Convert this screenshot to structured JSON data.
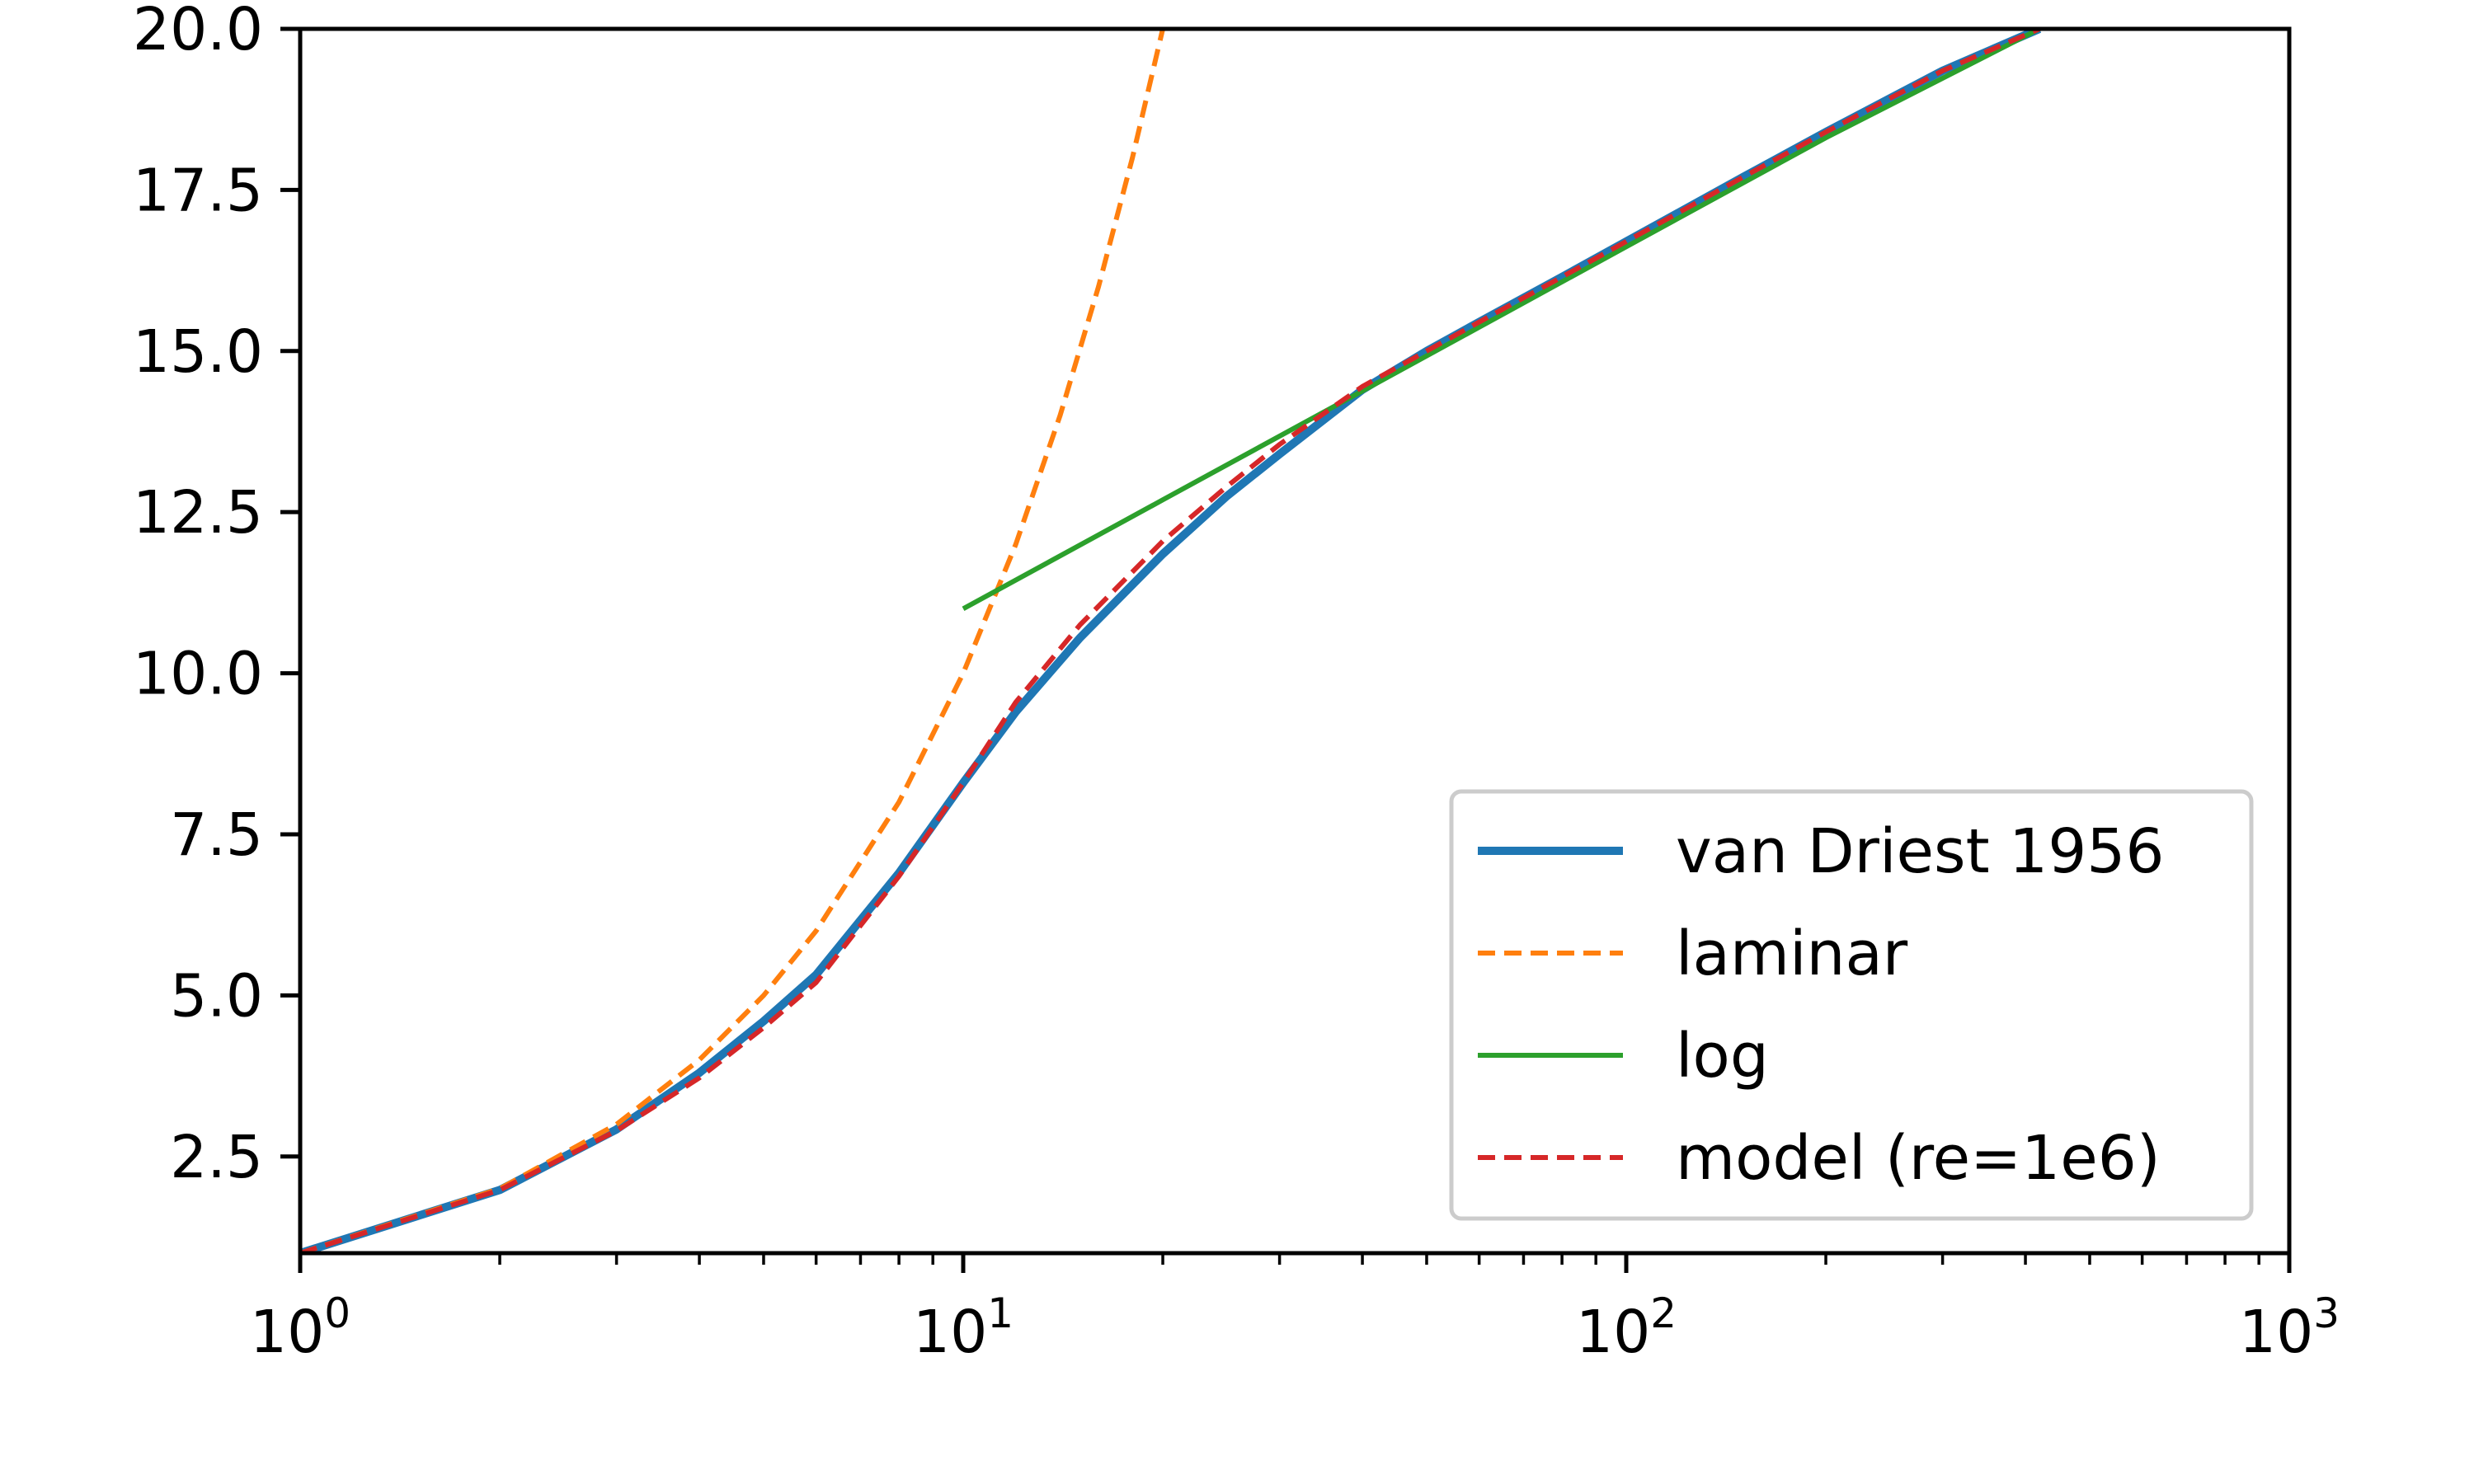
{
  "chart_data": {
    "type": "line",
    "title": "",
    "xlabel": "",
    "ylabel": "",
    "xscale": "log",
    "xlim": [
      1,
      1000
    ],
    "ylim": [
      1.0,
      20.0
    ],
    "grid": false,
    "legend_position": "lower right",
    "x_ticks": [
      {
        "value": 1,
        "base": "10",
        "exp": "0"
      },
      {
        "value": 10,
        "base": "10",
        "exp": "1"
      },
      {
        "value": 100,
        "base": "10",
        "exp": "2"
      },
      {
        "value": 1000,
        "base": "10",
        "exp": "3"
      }
    ],
    "y_ticks": [
      {
        "value": 2.5,
        "label": "2.5"
      },
      {
        "value": 5.0,
        "label": "5.0"
      },
      {
        "value": 7.5,
        "label": "7.5"
      },
      {
        "value": 10.0,
        "label": "10.0"
      },
      {
        "value": 12.5,
        "label": "12.5"
      },
      {
        "value": 15.0,
        "label": "15.0"
      },
      {
        "value": 17.5,
        "label": "17.5"
      },
      {
        "value": 20.0,
        "label": "20.0"
      }
    ],
    "series": [
      {
        "name": "van Driest 1956",
        "color": "#1f77b4",
        "style": "solid",
        "x": [
          1,
          2,
          3,
          4,
          5,
          6,
          8,
          10,
          12,
          15,
          20,
          25,
          30,
          40,
          50,
          60,
          80,
          100,
          150,
          200,
          300,
          420
        ],
        "y": [
          1.0,
          1.98,
          2.92,
          3.8,
          4.6,
          5.32,
          6.9,
          8.3,
          9.4,
          10.55,
          11.85,
          12.75,
          13.4,
          14.4,
          15.0,
          15.45,
          16.15,
          16.7,
          17.7,
          18.4,
          19.35,
          20.0
        ]
      },
      {
        "name": "laminar",
        "color": "#ff7f0e",
        "style": "dashed",
        "x": [
          1,
          2,
          3,
          4,
          5,
          6,
          8,
          10,
          12,
          14,
          16,
          18,
          20
        ],
        "y": [
          1,
          2,
          3,
          4,
          5,
          6,
          8,
          10,
          12,
          14,
          16,
          18,
          20
        ]
      },
      {
        "name": "log",
        "color": "#2ca02c",
        "style": "solid",
        "x": [
          10,
          20,
          40,
          60,
          100,
          200,
          420
        ],
        "y": [
          11.0,
          12.69,
          14.38,
          15.37,
          16.62,
          18.31,
          20.0
        ]
      },
      {
        "name": "model (re=1e6)",
        "color": "#d62728",
        "style": "dashed",
        "x": [
          1,
          2,
          3,
          4,
          5,
          6,
          8,
          10,
          12,
          15,
          20,
          25,
          30,
          40,
          50,
          60,
          80,
          100,
          150,
          200,
          300,
          420
        ],
        "y": [
          1.0,
          1.98,
          2.9,
          3.72,
          4.5,
          5.2,
          6.85,
          8.3,
          9.55,
          10.75,
          12.05,
          12.9,
          13.55,
          14.45,
          15.0,
          15.45,
          16.15,
          16.7,
          17.7,
          18.4,
          19.35,
          20.0
        ]
      }
    ]
  }
}
